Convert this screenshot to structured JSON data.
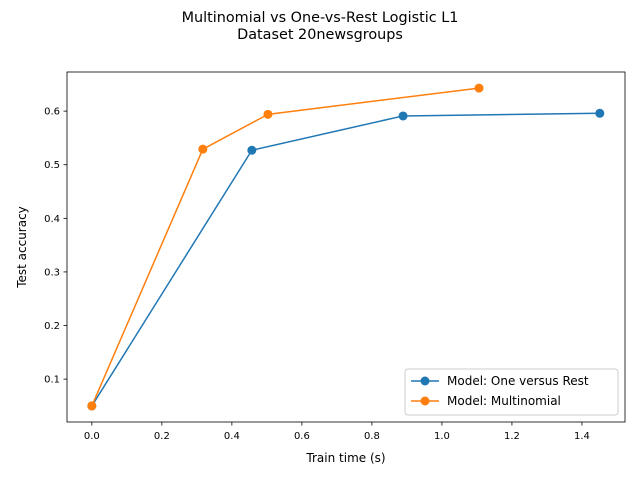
{
  "chart_data": {
    "type": "line",
    "title": "Multinomial vs One-vs-Rest Logistic L1",
    "subtitle": "Dataset 20newsgroups",
    "xlabel": "Train time (s)",
    "ylabel": "Test accuracy",
    "xlim": [
      -0.071,
      1.523
    ],
    "ylim": [
      0.02,
      0.673
    ],
    "xticks": [
      "0.0",
      "0.2",
      "0.4",
      "0.6",
      "0.8",
      "1.0",
      "1.2",
      "1.4"
    ],
    "yticks": [
      "0.1",
      "0.2",
      "0.3",
      "0.4",
      "0.5",
      "0.6"
    ],
    "grid": false,
    "legend_position": "lower-right",
    "series": [
      {
        "name": "Model: One versus Rest",
        "color": "#1f77b4",
        "x": [
          0.0,
          0.457,
          0.889,
          1.451
        ],
        "y": [
          0.05,
          0.527,
          0.591,
          0.596
        ]
      },
      {
        "name": "Model: Multinomial",
        "color": "#ff7f0e",
        "x": [
          0.0,
          0.317,
          0.503,
          1.106
        ],
        "y": [
          0.05,
          0.529,
          0.594,
          0.643
        ]
      }
    ]
  }
}
